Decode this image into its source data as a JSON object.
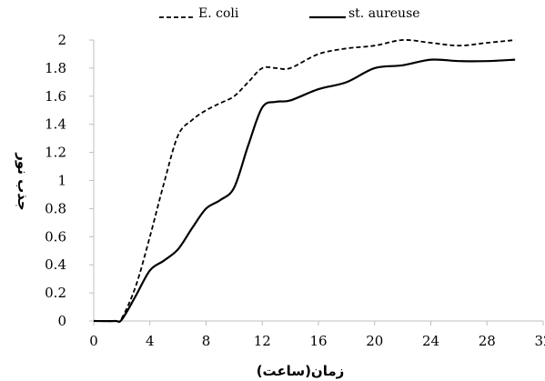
{
  "chart_data": {
    "type": "line",
    "title": "",
    "xlabel": "زمان(ساعت)",
    "ylabel": "جذب نور",
    "xlim": [
      0,
      32
    ],
    "ylim": [
      0,
      2
    ],
    "xticks": [
      "0",
      "4",
      "8",
      "12",
      "16",
      "20",
      "24",
      "28",
      "32"
    ],
    "yticks": [
      "0",
      "0.2",
      "0.4",
      "0.6",
      "0.8",
      "1",
      "1.2",
      "1.4",
      "1.6",
      "1.8",
      "2"
    ],
    "grid": false,
    "legend_position": "top",
    "series": [
      {
        "name": "E. coli",
        "style": "dashed",
        "color": "#000000",
        "x": [
          0,
          1.5,
          2,
          3,
          4,
          5,
          6,
          7,
          8,
          9,
          10,
          11,
          12,
          13,
          14,
          16,
          18,
          20,
          22,
          24,
          26,
          28,
          30
        ],
        "y": [
          0,
          0,
          0.02,
          0.25,
          0.6,
          0.98,
          1.32,
          1.43,
          1.5,
          1.55,
          1.6,
          1.7,
          1.8,
          1.8,
          1.8,
          1.9,
          1.94,
          1.96,
          2.0,
          1.98,
          1.96,
          1.98,
          2.0
        ]
      },
      {
        "name": "st. aureuse",
        "style": "solid",
        "color": "#000000",
        "x": [
          0,
          1.5,
          2,
          3,
          4,
          5,
          6,
          7,
          8,
          9,
          10,
          11,
          12,
          13,
          14,
          16,
          18,
          20,
          22,
          24,
          26,
          28,
          30
        ],
        "y": [
          0,
          0,
          0.01,
          0.18,
          0.36,
          0.43,
          0.51,
          0.66,
          0.8,
          0.86,
          0.95,
          1.25,
          1.52,
          1.56,
          1.57,
          1.65,
          1.7,
          1.8,
          1.82,
          1.86,
          1.85,
          1.85,
          1.86
        ]
      }
    ]
  }
}
